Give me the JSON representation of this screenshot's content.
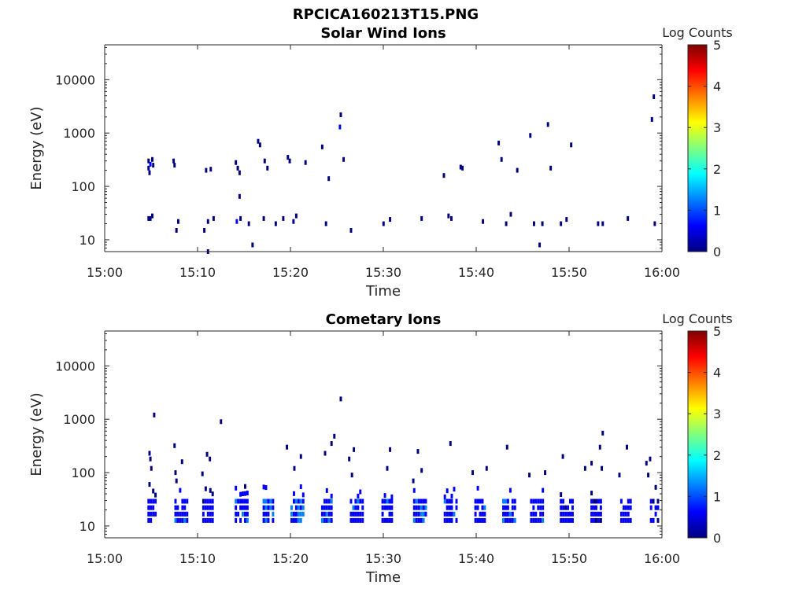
{
  "figure_title": "RPCICA160213T15.PNG",
  "colormap": [
    "#00007f",
    "#0000ff",
    "#007fff",
    "#00ffff",
    "#7fff7f",
    "#ffff00",
    "#ff7f00",
    "#ff0000",
    "#7f0000"
  ],
  "chart_data": [
    {
      "type": "heatmap",
      "title": "Solar Wind Ions",
      "xlabel": "Time",
      "ylabel": "Energy (eV)",
      "x_ticks": [
        "15:00",
        "15:10",
        "15:20",
        "15:30",
        "15:40",
        "15:50",
        "16:00"
      ],
      "xlim_minutes": [
        0,
        60
      ],
      "y_ticks": [
        "10",
        "100",
        "1000",
        "10000"
      ],
      "ylim": [
        6,
        45000
      ],
      "y_scale": "log",
      "colorbar": {
        "label": "Log Counts",
        "ticks": [
          "0",
          "1",
          "2",
          "3",
          "4",
          "5"
        ],
        "range": [
          0,
          5
        ]
      },
      "cells": [
        [
          4.6,
          300,
          0.2
        ],
        [
          4.6,
          220,
          0.3
        ],
        [
          4.7,
          180,
          0.2
        ],
        [
          4.8,
          260,
          0.4
        ],
        [
          5.0,
          320,
          0.2
        ],
        [
          5.1,
          250,
          0.1
        ],
        [
          7.3,
          300,
          0.2
        ],
        [
          7.4,
          250,
          0.3
        ],
        [
          10.8,
          200,
          0.2
        ],
        [
          11.3,
          210,
          0.1
        ],
        [
          14.0,
          280,
          0.2
        ],
        [
          14.2,
          220,
          0.2
        ],
        [
          14.4,
          180,
          0.1
        ],
        [
          16.4,
          700,
          0.2
        ],
        [
          16.6,
          600,
          0.2
        ],
        [
          17.1,
          300,
          0.1
        ],
        [
          17.4,
          220,
          0.1
        ],
        [
          19.6,
          350,
          0.2
        ],
        [
          19.8,
          300,
          0.1
        ],
        [
          21.5,
          280,
          0.1
        ],
        [
          23.3,
          550,
          0.2
        ],
        [
          24.0,
          140,
          0.1
        ],
        [
          25.2,
          1300,
          0.4
        ],
        [
          25.3,
          2200,
          0.2
        ],
        [
          25.6,
          320,
          0.1
        ],
        [
          36.4,
          160,
          0.2
        ],
        [
          38.2,
          230,
          0.3
        ],
        [
          38.4,
          220,
          0.2
        ],
        [
          42.3,
          650,
          0.2
        ],
        [
          42.6,
          320,
          0.1
        ],
        [
          44.3,
          200,
          0.1
        ],
        [
          45.7,
          900,
          0.2
        ],
        [
          47.6,
          1450,
          0.1
        ],
        [
          47.9,
          220,
          0.2
        ],
        [
          50.1,
          600,
          0.1
        ],
        [
          58.8,
          1800,
          0.1
        ],
        [
          59.0,
          4800,
          0.2
        ],
        [
          14.4,
          65,
          0.2
        ],
        [
          15.8,
          8,
          0.2
        ],
        [
          11.0,
          6,
          0.2
        ],
        [
          4.6,
          25,
          0.3
        ],
        [
          4.8,
          25,
          0.2
        ],
        [
          5.0,
          28,
          0.2
        ],
        [
          7.6,
          15,
          0.2
        ],
        [
          7.8,
          22,
          0.2
        ],
        [
          10.6,
          15,
          0.3
        ],
        [
          11.0,
          22,
          0.2
        ],
        [
          11.6,
          25,
          0.2
        ],
        [
          14.1,
          22,
          0.4
        ],
        [
          14.5,
          25,
          0.3
        ],
        [
          15.4,
          20,
          0.2
        ],
        [
          17.0,
          25,
          0.3
        ],
        [
          18.3,
          20,
          0.2
        ],
        [
          19.1,
          25,
          0.1
        ],
        [
          20.2,
          22,
          0.3
        ],
        [
          20.5,
          28,
          0.2
        ],
        [
          23.7,
          20,
          0.2
        ],
        [
          26.4,
          15,
          0.3
        ],
        [
          29.9,
          20,
          0.3
        ],
        [
          30.6,
          24,
          0.2
        ],
        [
          34.0,
          25,
          0.3
        ],
        [
          36.9,
          28,
          0.2
        ],
        [
          37.2,
          25,
          0.1
        ],
        [
          40.6,
          22,
          0.2
        ],
        [
          43.1,
          20,
          0.3
        ],
        [
          43.6,
          30,
          0.2
        ],
        [
          46.1,
          20,
          0.2
        ],
        [
          46.7,
          8,
          0.2
        ],
        [
          47.0,
          20,
          0.2
        ],
        [
          49.0,
          20,
          0.3
        ],
        [
          49.6,
          24,
          0.2
        ],
        [
          53.0,
          20,
          0.2
        ],
        [
          53.5,
          20,
          0.1
        ],
        [
          56.2,
          25,
          0.2
        ],
        [
          59.1,
          20,
          0.1
        ]
      ]
    },
    {
      "type": "heatmap",
      "title": "Cometary Ions",
      "xlabel": "Time",
      "ylabel": "Energy (eV)",
      "x_ticks": [
        "15:00",
        "15:10",
        "15:20",
        "15:30",
        "15:40",
        "15:50",
        "16:00"
      ],
      "xlim_minutes": [
        0,
        60
      ],
      "y_ticks": [
        "10",
        "100",
        "1000",
        "10000"
      ],
      "ylim": [
        6,
        45000
      ],
      "y_scale": "log",
      "colorbar": {
        "label": "Log Counts",
        "ticks": [
          "0",
          "1",
          "2",
          "3",
          "4",
          "5"
        ],
        "range": [
          0,
          5
        ]
      },
      "bursts": [
        [
          4.6,
          1.0,
          0.6
        ],
        [
          7.5,
          1.5,
          0.8
        ],
        [
          10.5,
          1.2,
          0.7
        ],
        [
          14.0,
          1.4,
          0.9
        ],
        [
          17.0,
          1.3,
          1.0
        ],
        [
          20.0,
          1.4,
          1.2
        ],
        [
          23.3,
          1.3,
          1.0
        ],
        [
          26.4,
          1.4,
          0.9
        ],
        [
          29.8,
          1.3,
          0.8
        ],
        [
          33.2,
          1.4,
          1.0
        ],
        [
          36.5,
          1.4,
          0.9
        ],
        [
          39.8,
          1.2,
          0.8
        ],
        [
          42.8,
          1.4,
          0.9
        ],
        [
          45.8,
          1.6,
          0.8
        ],
        [
          49.0,
          1.5,
          0.7
        ],
        [
          52.3,
          1.2,
          0.6
        ],
        [
          55.5,
          1.3,
          0.7
        ],
        [
          58.7,
          1.0,
          0.6
        ]
      ],
      "cells": [
        [
          4.7,
          230,
          0.2
        ],
        [
          4.8,
          180,
          0.2
        ],
        [
          4.9,
          120,
          0.1
        ],
        [
          4.7,
          60,
          0.2
        ],
        [
          5.2,
          1200,
          0.1
        ],
        [
          7.4,
          320,
          0.2
        ],
        [
          7.5,
          100,
          0.2
        ],
        [
          7.6,
          70,
          0.3
        ],
        [
          8.2,
          160,
          0.1
        ],
        [
          10.4,
          95,
          0.1
        ],
        [
          10.9,
          220,
          0.2
        ],
        [
          11.2,
          180,
          0.1
        ],
        [
          12.4,
          900,
          0.1
        ],
        [
          15.0,
          55,
          0.1
        ],
        [
          19.5,
          300,
          0.2
        ],
        [
          20.3,
          120,
          0.1
        ],
        [
          21.0,
          200,
          0.1
        ],
        [
          23.6,
          230,
          0.1
        ],
        [
          24.3,
          350,
          0.1
        ],
        [
          24.6,
          480,
          0.1
        ],
        [
          25.3,
          2400,
          0.1
        ],
        [
          26.2,
          180,
          0.2
        ],
        [
          26.7,
          270,
          0.1
        ],
        [
          26.5,
          90,
          0.1
        ],
        [
          30.3,
          120,
          0.2
        ],
        [
          30.6,
          270,
          0.1
        ],
        [
          33.1,
          70,
          0.1
        ],
        [
          33.6,
          250,
          0.2
        ],
        [
          34.0,
          110,
          0.1
        ],
        [
          37.1,
          350,
          0.2
        ],
        [
          39.5,
          100,
          0.1
        ],
        [
          41.0,
          120,
          0.1
        ],
        [
          43.2,
          300,
          0.2
        ],
        [
          45.6,
          90,
          0.1
        ],
        [
          47.3,
          100,
          0.1
        ],
        [
          49.2,
          200,
          0.1
        ],
        [
          51.6,
          120,
          0.1
        ],
        [
          52.3,
          150,
          0.1
        ],
        [
          53.2,
          300,
          0.2
        ],
        [
          53.5,
          550,
          0.1
        ],
        [
          53.4,
          120,
          0.1
        ],
        [
          55.3,
          90,
          0.1
        ],
        [
          56.1,
          300,
          0.1
        ],
        [
          58.2,
          150,
          0.2
        ],
        [
          58.6,
          180,
          0.1
        ],
        [
          58.4,
          90,
          0.2
        ]
      ]
    }
  ]
}
